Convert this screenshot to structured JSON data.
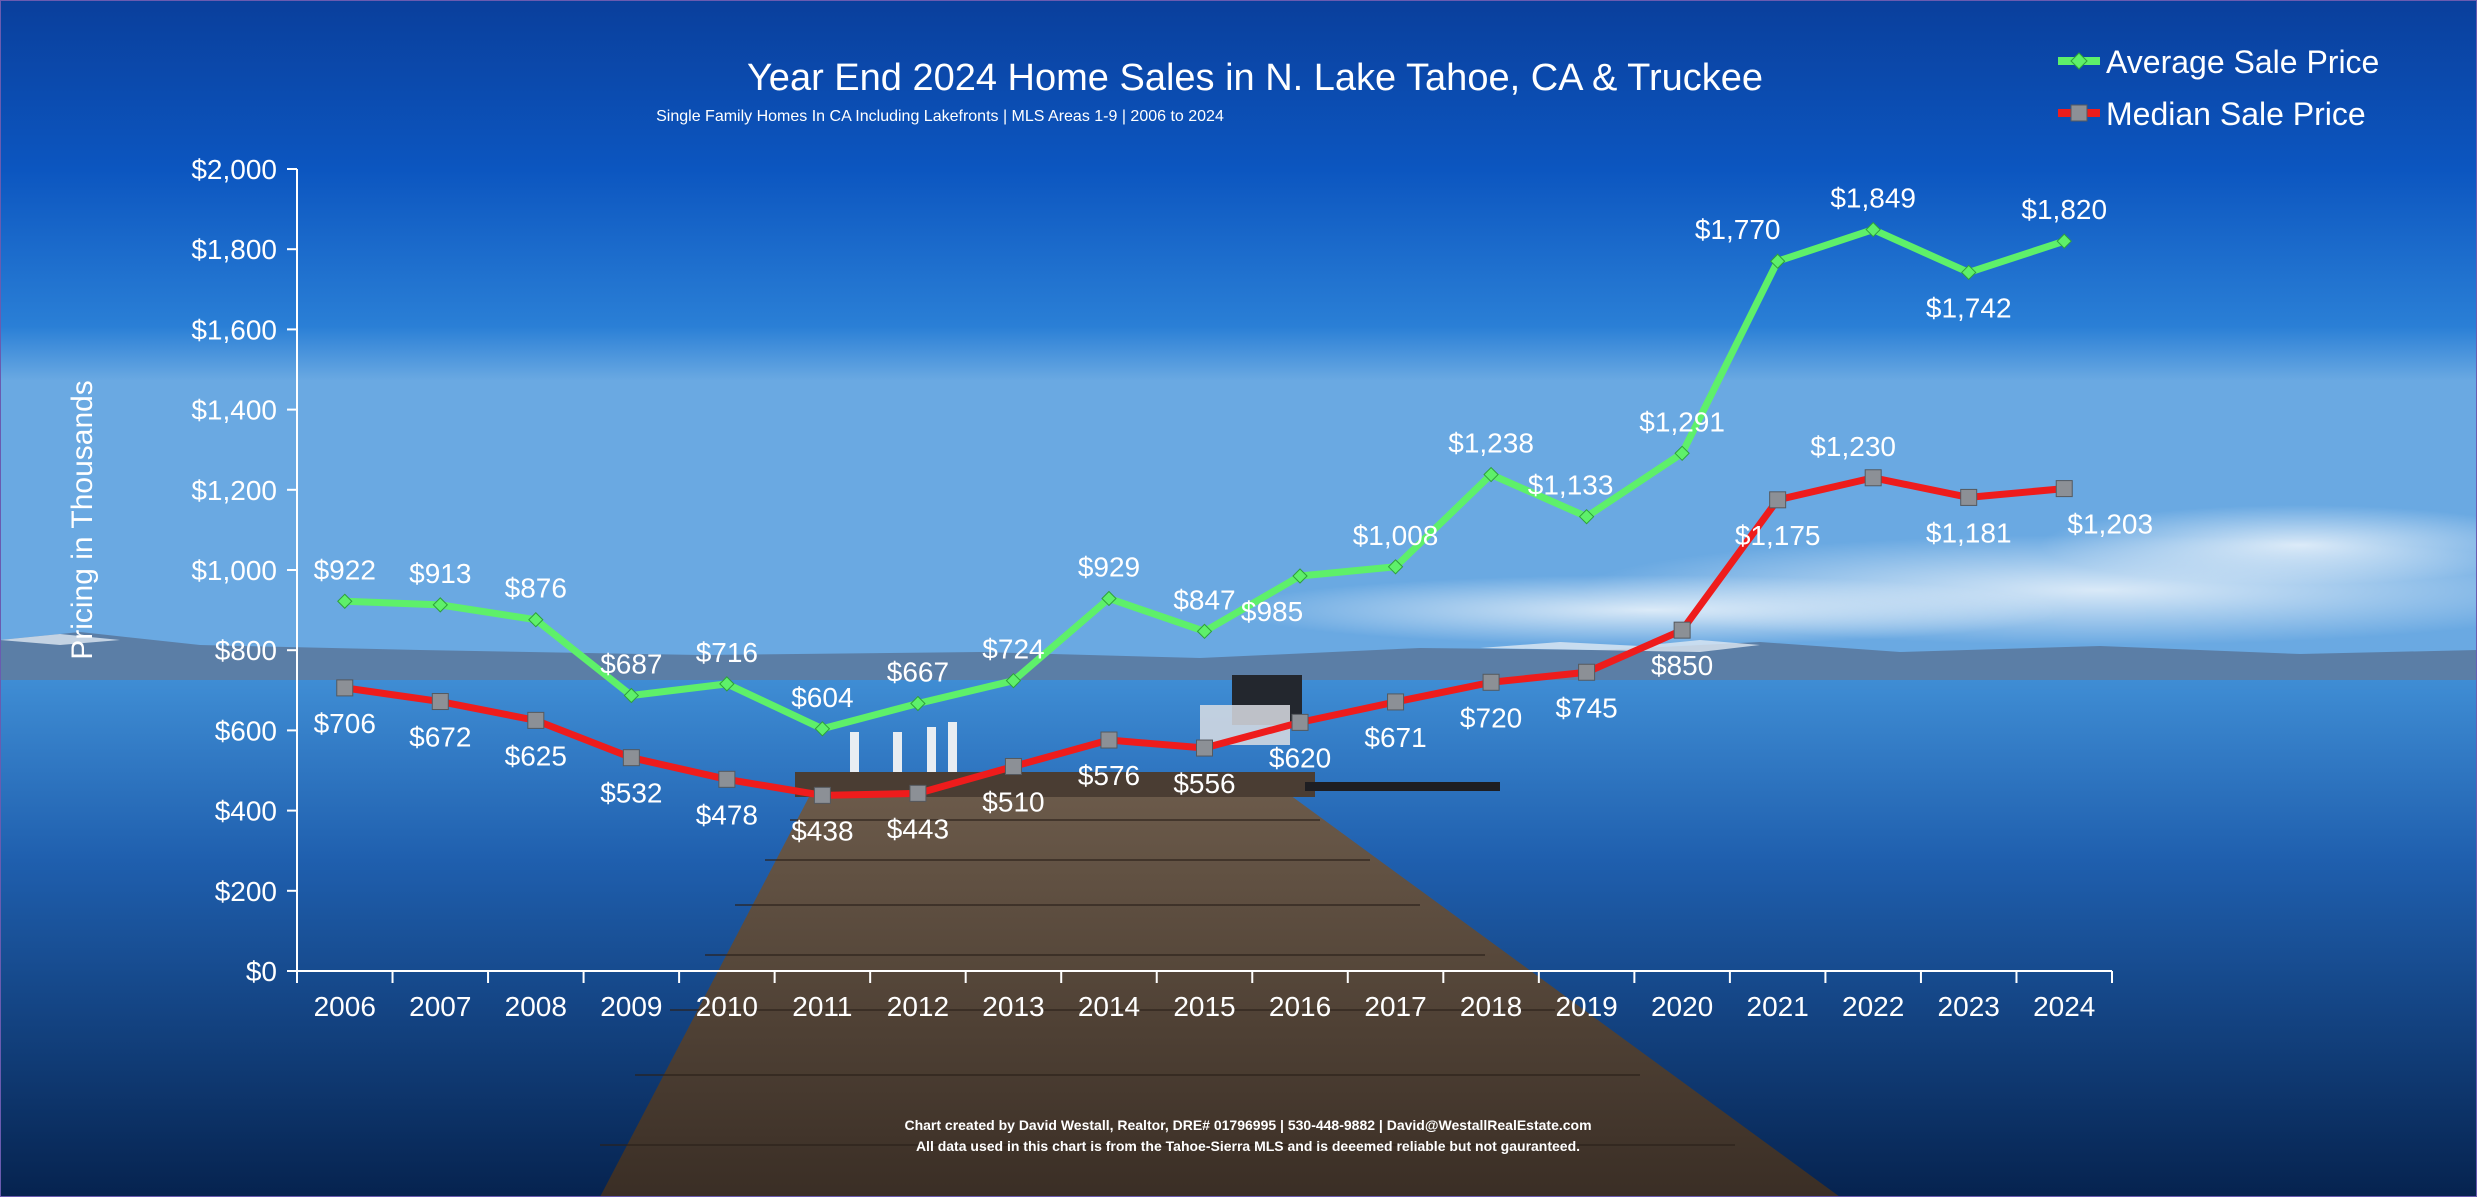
{
  "chart_data": {
    "type": "line",
    "title": "Year End 2024 Home Sales in N. Lake Tahoe, CA & Truckee",
    "subtitle": "Single Family Homes In CA Including Lakefronts | MLS Areas 1-9 | 2006 to 2024",
    "ylabel": "Pricing in Thousands",
    "xlabel": "",
    "ylim": [
      0,
      2000
    ],
    "y_ticks": [
      0,
      200,
      400,
      600,
      800,
      1000,
      1200,
      1400,
      1600,
      1800,
      2000
    ],
    "y_tick_labels": [
      "$0",
      "$200",
      "$400",
      "$600",
      "$800",
      "$1,000",
      "$1,200",
      "$1,400",
      "$1,600",
      "$1,800",
      "$2,000"
    ],
    "grid": false,
    "legend_position": "top-right",
    "categories": [
      "2006",
      "2007",
      "2008",
      "2009",
      "2010",
      "2011",
      "2012",
      "2013",
      "2014",
      "2015",
      "2016",
      "2017",
      "2018",
      "2019",
      "2020",
      "2021",
      "2022",
      "2023",
      "2024"
    ],
    "series": [
      {
        "name": "Average Sale Price",
        "color": "#5ef06a",
        "marker": "diamond",
        "values": [
          922,
          913,
          876,
          687,
          716,
          604,
          667,
          724,
          929,
          847,
          985,
          1008,
          1238,
          1133,
          1291,
          1770,
          1849,
          1742,
          1820
        ],
        "labels": [
          "$922",
          "$913",
          "$876",
          "$687",
          "$716",
          "$604",
          "$667",
          "$724",
          "$929",
          "$847",
          "$985",
          "$1,008",
          "$1,238",
          "$1,133",
          "$1,291",
          "$1,770",
          "$1,849",
          "$1,742",
          "$1,820"
        ]
      },
      {
        "name": "Median Sale Price",
        "color": "#ee1c1c",
        "marker": "square",
        "values": [
          706,
          672,
          625,
          532,
          478,
          438,
          443,
          510,
          576,
          556,
          620,
          671,
          720,
          745,
          850,
          1175,
          1230,
          1181,
          1203
        ],
        "labels": [
          "$706",
          "$672",
          "$625",
          "$532",
          "$478",
          "$438",
          "$443",
          "$510",
          "$576",
          "$556",
          "$620",
          "$671",
          "$720",
          "$745",
          "$850",
          "$1,175",
          "$1,230",
          "$1,181",
          "$1,203"
        ]
      }
    ],
    "footer": {
      "line1": "Chart created by David Westall, Realtor, DRE# 01796995 | 530-448-9882 | David@WestallRealEstate.com",
      "line2": "All data used in this chart is from the Tahoe-Sierra MLS and is deeemed reliable but  not gauranteed."
    }
  }
}
